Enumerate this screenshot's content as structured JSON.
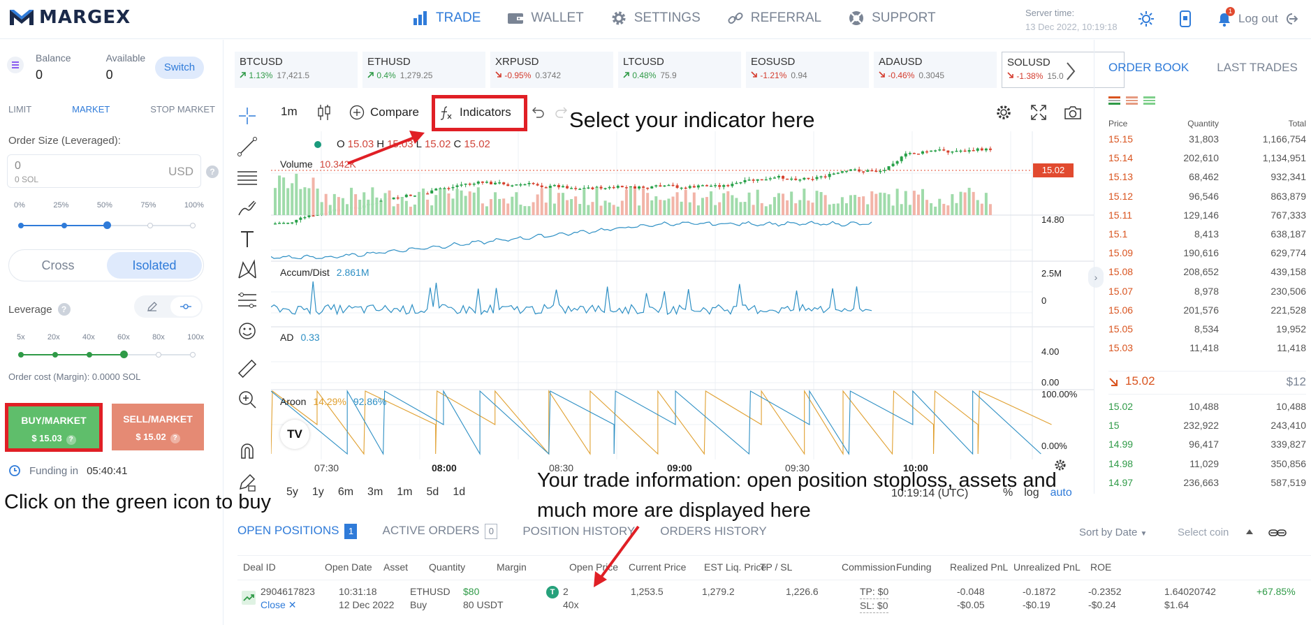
{
  "app": {
    "brand": "MARGEX"
  },
  "nav": [
    {
      "label": "TRADE",
      "icon": "bar-chart-icon",
      "active": true
    },
    {
      "label": "WALLET",
      "icon": "wallet-icon",
      "active": false
    },
    {
      "label": "SETTINGS",
      "icon": "gear-icon",
      "active": false
    },
    {
      "label": "REFERRAL",
      "icon": "link-icon",
      "active": false
    },
    {
      "label": "SUPPORT",
      "icon": "lifebuoy-icon",
      "active": false
    }
  ],
  "server": {
    "label": "Server time:",
    "time": "13 Dec 2022, 10:19:18"
  },
  "notifications": {
    "count": "1"
  },
  "logout": "Log out",
  "balance": {
    "label": "Balance",
    "value": "0",
    "available_label": "Available",
    "available_value": "0",
    "switch": "Switch"
  },
  "order_tabs": [
    "LIMIT",
    "MARKET",
    "STOP MARKET"
  ],
  "order_size": {
    "label": "Order Size (Leveraged):",
    "value": "0",
    "sub": "0 SOL",
    "currency": "USD",
    "help": "?"
  },
  "size_pct": [
    "0%",
    "25%",
    "50%",
    "75%",
    "100%"
  ],
  "size_level": 0.5,
  "margin_mode": {
    "cross": "Cross",
    "isolated": "Isolated"
  },
  "leverage": {
    "label": "Leverage",
    "help": "?",
    "options": [
      "5x",
      "20x",
      "40x",
      "60x",
      "80x",
      "100x"
    ],
    "selected_index": 3
  },
  "order_cost": "Order cost (Margin): 0.0000 SOL",
  "buy": {
    "label": "BUY/MARKET",
    "price": "$ 15.03"
  },
  "sell": {
    "label": "SELL/MARKET",
    "price": "$ 15.02"
  },
  "funding": {
    "label": "Funding in",
    "time": "05:40:41"
  },
  "annotations": {
    "buy": "Click on the green icon to buy",
    "indicator": "Select your indicator here",
    "info_line1": "Your trade information: open position stoploss, assets and",
    "info_line2": "much more are displayed here"
  },
  "tickers": [
    {
      "name": "BTCUSD",
      "change": "1.13%",
      "price": "17,421.5",
      "dir": "up"
    },
    {
      "name": "ETHUSD",
      "change": "0.4%",
      "price": "1,279.25",
      "dir": "up"
    },
    {
      "name": "XRPUSD",
      "change": "-0.95%",
      "price": "0.3742",
      "dir": "dn"
    },
    {
      "name": "LTCUSD",
      "change": "0.48%",
      "price": "75.9",
      "dir": "up"
    },
    {
      "name": "EOSUSD",
      "change": "-1.21%",
      "price": "0.94",
      "dir": "dn"
    },
    {
      "name": "ADAUSD",
      "change": "-0.46%",
      "price": "0.3045",
      "dir": "dn"
    },
    {
      "name": "SOLUSD",
      "change": "-1.38%",
      "price": "15.0",
      "dir": "dn"
    }
  ],
  "chart_toolbar": {
    "timeframe": "1m",
    "compare": "Compare",
    "indicators": "Indicators"
  },
  "ohlc": {
    "o_label": "O",
    "o": "15.03",
    "h_label": "H",
    "h": "15.03",
    "l_label": "L",
    "l": "15.02",
    "c_label": "C",
    "c": "15.02"
  },
  "panes": {
    "volume": {
      "label": "Volume",
      "value": "10.342K"
    },
    "accum": {
      "label": "Accum/Dist",
      "value": "2.861M"
    },
    "ad": {
      "label": "AD",
      "value": "0.33"
    },
    "aroon": {
      "label": "Aroon",
      "up": "14.29%",
      "down": "92.86%"
    }
  },
  "price_axis": {
    "current": "15.02",
    "mid": "14.80",
    "accum_hi": "2.5M",
    "accum_lo": "0",
    "ad_hi": "4.00",
    "ad_lo": "0.00",
    "aroon_hi": "100.00%",
    "aroon_lo": "0.00%"
  },
  "time_labels": [
    {
      "t": "07:30",
      "bold": false
    },
    {
      "t": "08:00",
      "bold": true
    },
    {
      "t": "08:30",
      "bold": false
    },
    {
      "t": "09:00",
      "bold": true
    },
    {
      "t": "09:30",
      "bold": false
    },
    {
      "t": "10:00",
      "bold": true
    }
  ],
  "range_buttons": [
    "5y",
    "1y",
    "6m",
    "3m",
    "1m",
    "5d",
    "1d"
  ],
  "chart_footer": {
    "utc": "10:19:14 (UTC)",
    "pct": "%",
    "log": "log",
    "auto": "auto"
  },
  "tv_logo": "TV",
  "orderbook": {
    "tabs": [
      "ORDER BOOK",
      "LAST TRADES"
    ],
    "headers": {
      "price": "Price",
      "qty": "Quantity",
      "total": "Total"
    },
    "asks": [
      [
        "15.15",
        "31,803",
        "1,166,754"
      ],
      [
        "15.14",
        "202,610",
        "1,134,951"
      ],
      [
        "15.13",
        "68,462",
        "932,341"
      ],
      [
        "15.12",
        "96,546",
        "863,879"
      ],
      [
        "15.11",
        "129,146",
        "767,333"
      ],
      [
        "15.1",
        "8,413",
        "638,187"
      ],
      [
        "15.09",
        "190,616",
        "629,774"
      ],
      [
        "15.08",
        "208,652",
        "439,158"
      ],
      [
        "15.07",
        "8,978",
        "230,506"
      ],
      [
        "15.06",
        "201,576",
        "221,528"
      ],
      [
        "15.05",
        "8,534",
        "19,952"
      ],
      [
        "15.03",
        "11,418",
        "11,418"
      ]
    ],
    "mid": {
      "price": "15.02",
      "value": "$12"
    },
    "bids": [
      [
        "15.02",
        "10,488",
        "10,488"
      ],
      [
        "15",
        "232,922",
        "243,410"
      ],
      [
        "14.99",
        "96,417",
        "339,827"
      ],
      [
        "14.98",
        "11,029",
        "350,856"
      ],
      [
        "14.97",
        "236,663",
        "587,519"
      ]
    ]
  },
  "positions": {
    "tabs": [
      {
        "label": "OPEN POSITIONS",
        "badge": "1",
        "active": true
      },
      {
        "label": "ACTIVE ORDERS",
        "badge": "0",
        "active": false
      },
      {
        "label": "POSITION HISTORY",
        "badge": "",
        "active": false
      },
      {
        "label": "ORDERS HISTORY",
        "badge": "",
        "active": false
      }
    ],
    "sort": "Sort by Date",
    "select_coin": "Select coin",
    "headers": [
      "Deal ID",
      "Open Date",
      "Asset",
      "Quantity",
      "Margin",
      "Open Price",
      "Current Price",
      "EST Liq. Price",
      "TP / SL",
      "Commission",
      "Funding",
      "Realized PnL",
      "Unrealized PnL",
      "ROE"
    ],
    "row": {
      "deal_id": "2904617823",
      "close": "Close",
      "open_date": "10:31:18",
      "open_date2": "12 Dec 2022",
      "asset": "ETHUSD",
      "side": "Buy",
      "qty": "$80",
      "qty2": "80 USDT",
      "margin": "2",
      "margin2": "40x",
      "margin_icon": "T",
      "open_price": "1,253.5",
      "current_price": "1,279.2",
      "liq_price": "1,226.6",
      "tp": "TP: $0",
      "sl": "SL: $0",
      "commission": "-0.048",
      "commission2": "-$0.05",
      "funding": "-0.1872",
      "funding2": "-$0.19",
      "realized": "-0.2352",
      "realized2": "-$0.24",
      "unrealized": "1.64020742",
      "unrealized2": "$1.64",
      "roe": "+67.85%"
    }
  },
  "colors": {
    "accent": "#2f7bd9",
    "buy": "#5fbe6b",
    "sell": "#e58a74",
    "up": "#2f9a47",
    "down": "#d43b2d",
    "annotation": "#e01f25"
  }
}
